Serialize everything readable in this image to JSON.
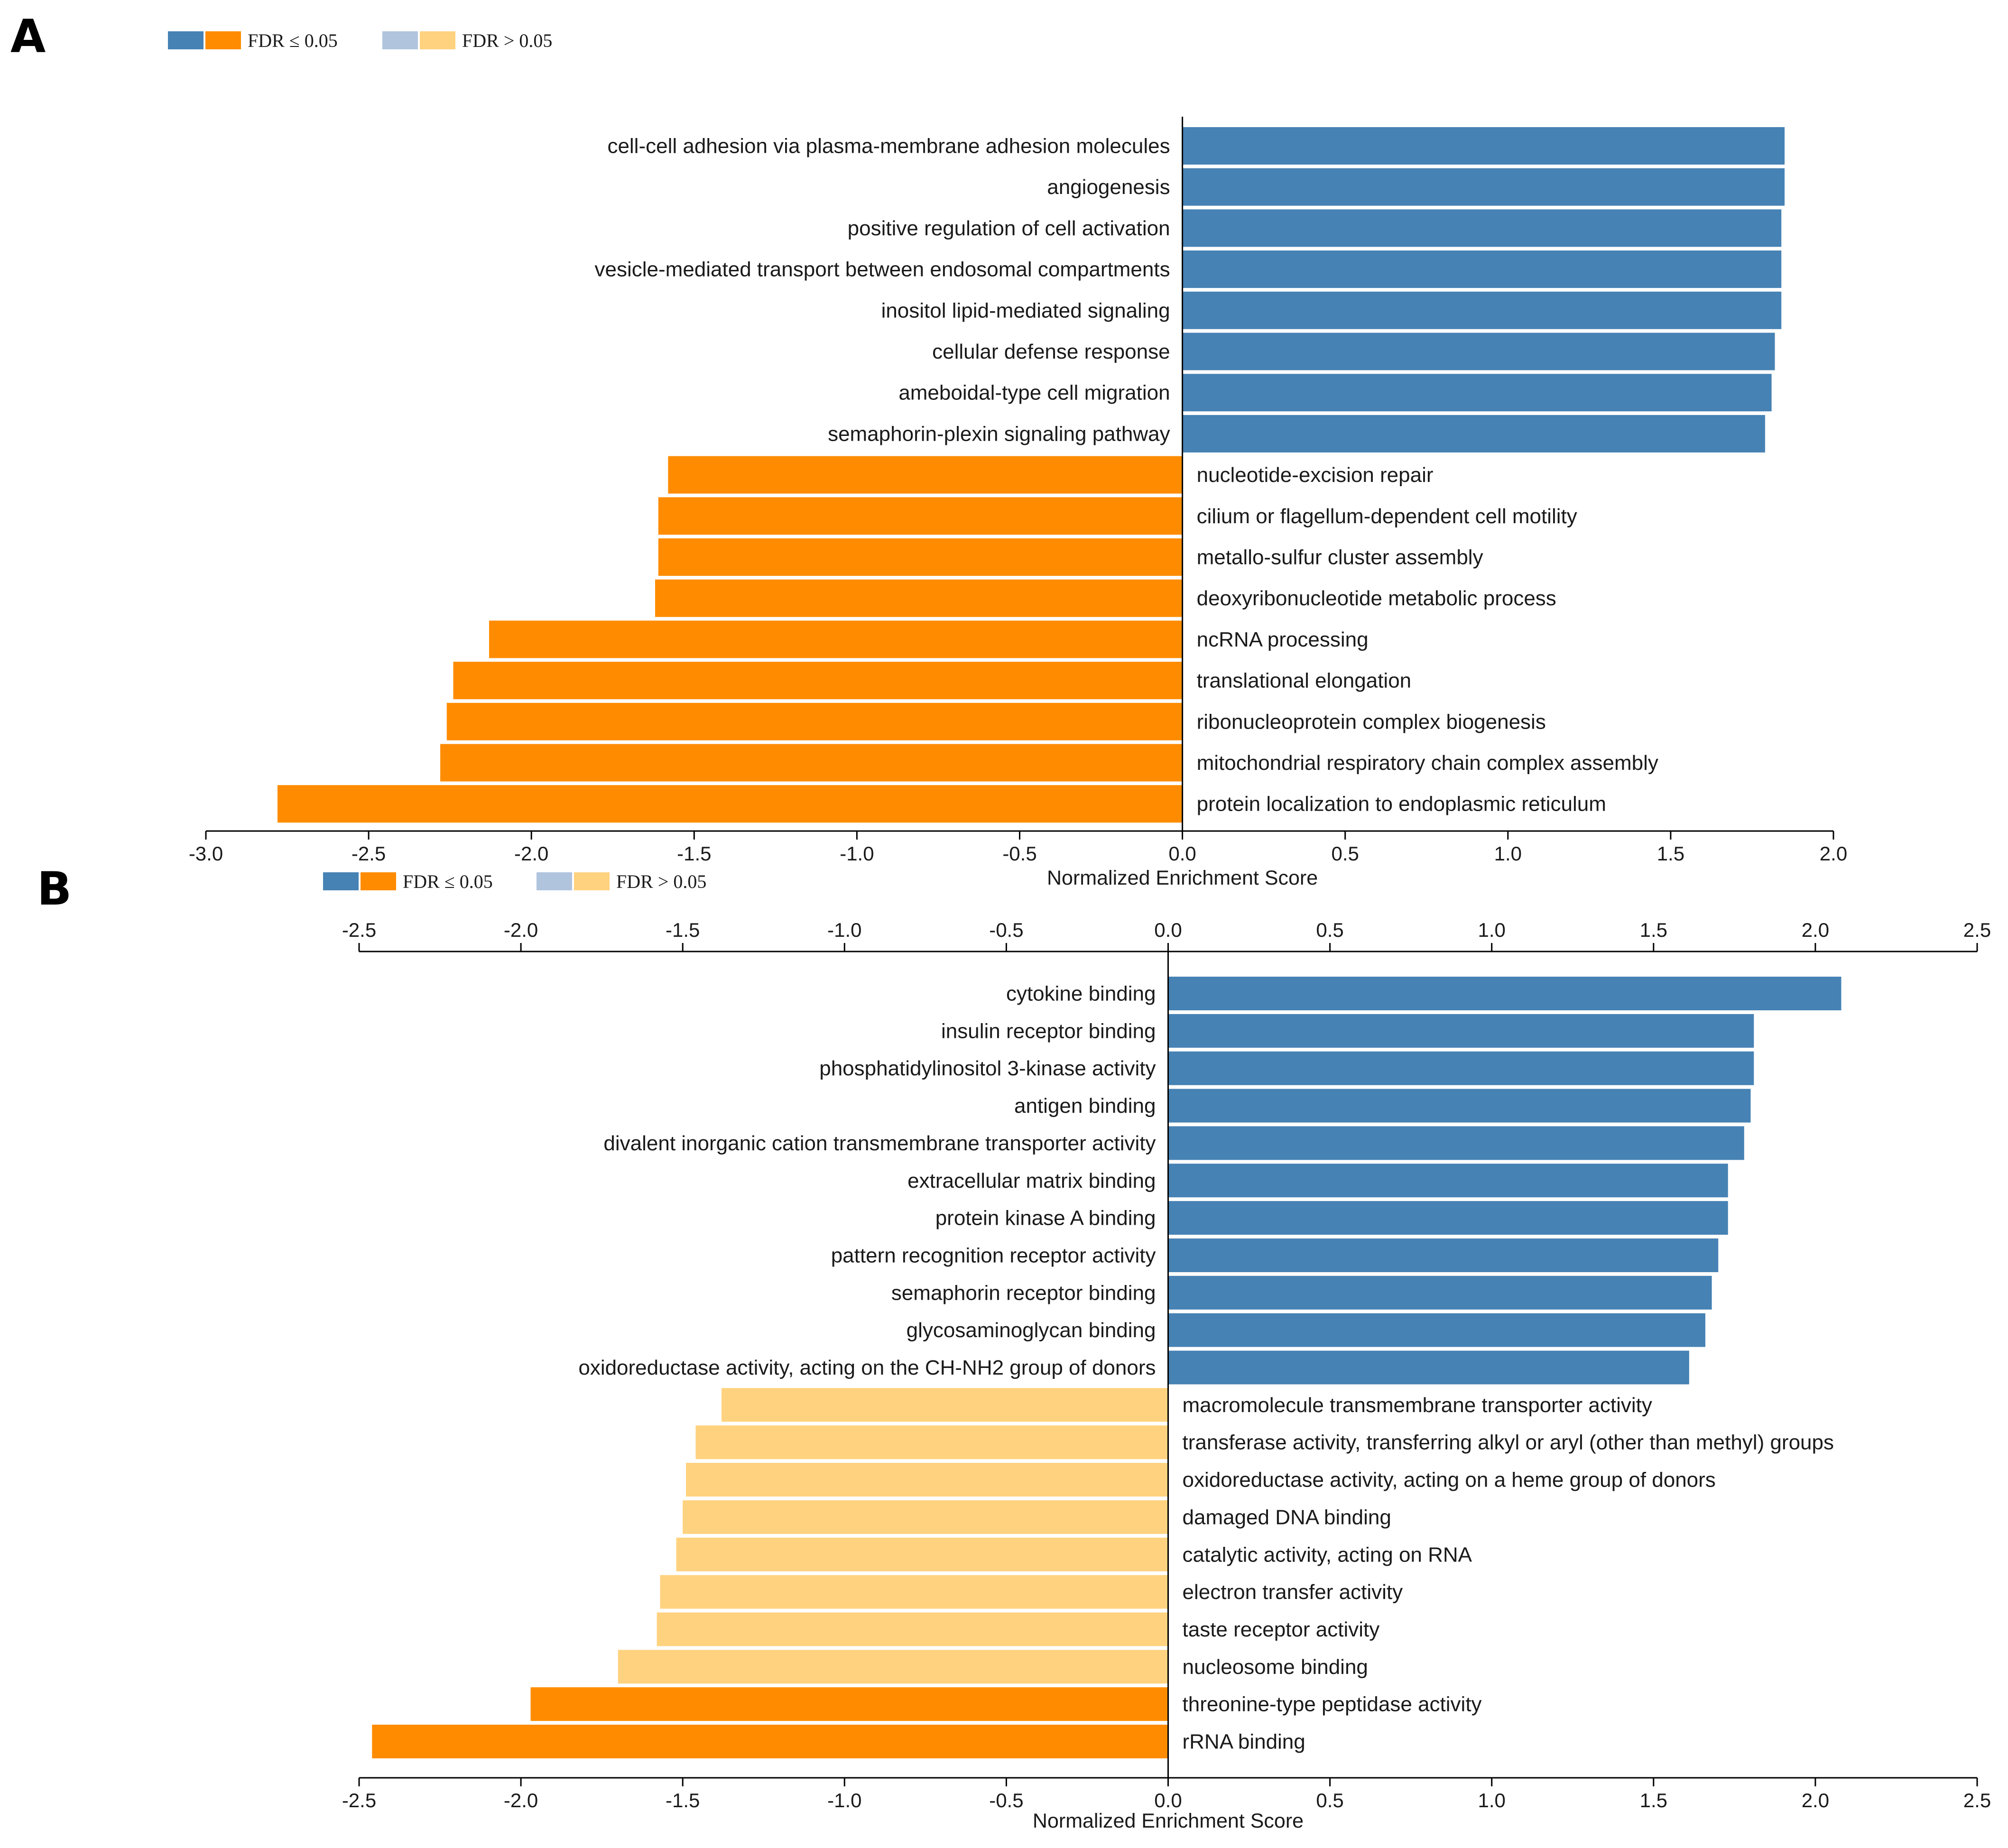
{
  "chart_data": [
    {
      "type": "bar",
      "orientation": "horizontal",
      "panel": "A",
      "legend": [
        {
          "label": "FDR ≤ 0.05",
          "colors": [
            "#4682b4",
            "#ff8c00"
          ]
        },
        {
          "label": "FDR > 0.05",
          "colors": [
            "#b0c4de",
            "#ffd27f"
          ]
        }
      ],
      "xlabel": "Normalized Enrichment Score",
      "xlim": [
        -3.0,
        2.0
      ],
      "xticks": [
        "-3.0",
        "-2.5",
        "-2.0",
        "-1.5",
        "-1.0",
        "-0.5",
        "0.0",
        "0.5",
        "1.0",
        "1.5",
        "2.0"
      ],
      "categories": [
        "cell-cell adhesion via plasma-membrane adhesion molecules",
        "angiogenesis",
        "positive regulation of cell activation",
        "vesicle-mediated transport between endosomal compartments",
        "inositol lipid-mediated signaling",
        "cellular defense response",
        "ameboidal-type cell migration",
        "semaphorin-plexin signaling pathway",
        "nucleotide-excision repair",
        "cilium or flagellum-dependent cell motility",
        "metallo-sulfur cluster assembly",
        "deoxyribonucleotide metabolic process",
        "ncRNA processing",
        "translational elongation",
        "ribonucleoprotein complex biogenesis",
        "mitochondrial respiratory chain complex assembly",
        "protein localization to endoplasmic reticulum"
      ],
      "values": [
        1.85,
        1.85,
        1.84,
        1.84,
        1.84,
        1.82,
        1.81,
        1.79,
        -1.58,
        -1.61,
        -1.61,
        -1.62,
        -2.13,
        -2.24,
        -2.26,
        -2.28,
        -2.78
      ],
      "significant": [
        true,
        true,
        true,
        true,
        true,
        true,
        true,
        true,
        true,
        true,
        true,
        true,
        true,
        true,
        true,
        true,
        true
      ]
    },
    {
      "type": "bar",
      "orientation": "horizontal",
      "panel": "B",
      "legend": [
        {
          "label": "FDR ≤ 0.05",
          "colors": [
            "#4682b4",
            "#ff8c00"
          ]
        },
        {
          "label": "FDR > 0.05",
          "colors": [
            "#b0c4de",
            "#ffd27f"
          ]
        }
      ],
      "xlabel": "Normalized Enrichment Score",
      "xlim": [
        -2.5,
        2.5
      ],
      "xticks": [
        "-2.5",
        "-2.0",
        "-1.5",
        "-1.0",
        "-0.5",
        "0.0",
        "0.5",
        "1.0",
        "1.5",
        "2.0",
        "2.5"
      ],
      "categories": [
        "cytokine binding",
        "insulin receptor binding",
        "phosphatidylinositol 3-kinase activity",
        "antigen binding",
        "divalent inorganic cation transmembrane transporter activity",
        "extracellular matrix binding",
        "protein kinase A binding",
        "pattern recognition receptor activity",
        "semaphorin receptor binding",
        "glycosaminoglycan binding",
        "oxidoreductase activity, acting on the CH-NH2 group of donors",
        "macromolecule transmembrane transporter activity",
        "transferase activity, transferring alkyl or aryl (other than methyl) groups",
        "oxidoreductase activity, acting on a heme group of donors",
        "damaged DNA binding",
        "catalytic activity, acting on RNA",
        "electron transfer activity",
        "taste receptor activity",
        "nucleosome binding",
        "threonine-type peptidase activity",
        "rRNA binding"
      ],
      "values": [
        2.08,
        1.81,
        1.81,
        1.8,
        1.78,
        1.73,
        1.73,
        1.7,
        1.68,
        1.66,
        1.61,
        -1.38,
        -1.46,
        -1.49,
        -1.5,
        -1.52,
        -1.57,
        -1.58,
        -1.7,
        -1.97,
        -2.46
      ],
      "significant": [
        true,
        true,
        true,
        true,
        true,
        true,
        true,
        true,
        true,
        true,
        true,
        false,
        false,
        false,
        false,
        false,
        false,
        false,
        false,
        true,
        true
      ]
    }
  ]
}
